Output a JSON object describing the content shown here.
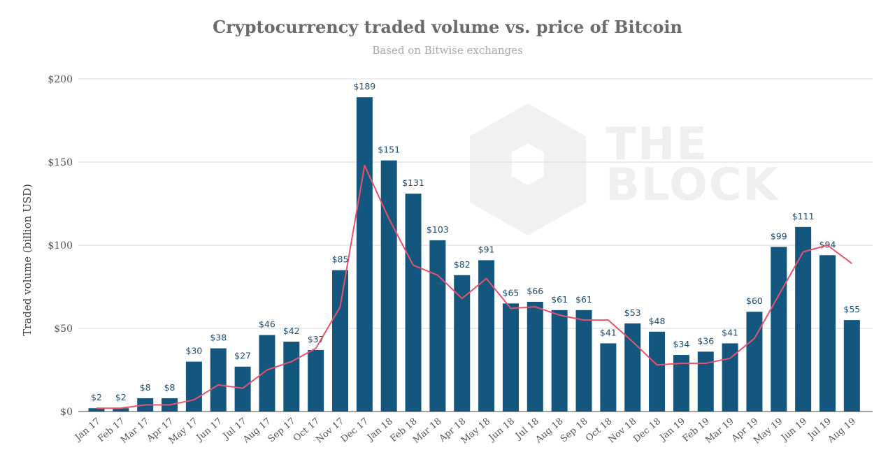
{
  "chart_data": {
    "type": "bar",
    "title": "Cryptocurrency traded volume vs. price of Bitcoin",
    "subtitle": "Based on Bitwise exchanges",
    "xlabel": "",
    "ylabel": "Traded volume (billion USD)",
    "ylim": [
      0,
      200
    ],
    "yticks": [
      "$0",
      "$50",
      "$100",
      "$150",
      "$200"
    ],
    "grid": true,
    "categories": [
      "Jan 17",
      "Feb 17",
      "Mar 17",
      "Apr 17",
      "May 17",
      "Jun 17",
      "Jul 17",
      "Aug 17",
      "Sep 17",
      "Oct 17",
      "Nov 17",
      "Dec 17",
      "Jan 18",
      "Feb 18",
      "Mar 18",
      "Apr 18",
      "May 18",
      "Jun 18",
      "Jul 18",
      "Aug 18",
      "Sep 18",
      "Oct 18",
      "Nov 18",
      "Dec 18",
      "Jan 19",
      "Feb 19",
      "Mar 19",
      "Apr 19",
      "May 19",
      "Jun 19",
      "Jul 19",
      "Aug 19"
    ],
    "series": [
      {
        "type": "bar",
        "color": "#13577f",
        "values": [
          2,
          2,
          8,
          8,
          30,
          38,
          27,
          46,
          42,
          37,
          85,
          189,
          151,
          131,
          103,
          82,
          91,
          65,
          66,
          61,
          61,
          41,
          53,
          48,
          34,
          36,
          41,
          60,
          99,
          111,
          94,
          55
        ],
        "labels": [
          "$2",
          "$2",
          "$8",
          "$8",
          "$30",
          "$38",
          "$27",
          "$46",
          "$42",
          "$37",
          "$85",
          "$189",
          "$151",
          "$131",
          "$103",
          "$82",
          "$91",
          "$65",
          "$66",
          "$61",
          "$61",
          "$41",
          "$53",
          "$48",
          "$34",
          "$36",
          "$41",
          "$60",
          "$99",
          "$111",
          "$94",
          "$55"
        ]
      },
      {
        "type": "line",
        "color": "#e8536b",
        "values": [
          {
            "x": "Jan 17",
            "y": 2
          },
          {
            "x": "Feb 17",
            "y": 2
          },
          {
            "x": "Mar 17",
            "y": 4
          },
          {
            "x": "Apr 17",
            "y": 4
          },
          {
            "x": "May 17",
            "y": 7
          },
          {
            "x": "Jun 17",
            "y": 16
          },
          {
            "x": "Jul 17",
            "y": 14
          },
          {
            "x": "Aug 17",
            "y": 25
          },
          {
            "x": "Sep 17",
            "y": 30
          },
          {
            "x": "Oct 17",
            "y": 38
          },
          {
            "x": "Nov 17",
            "y": 63
          },
          {
            "x": "Dec 17",
            "y": 148
          },
          {
            "x": "Jan 18",
            "y": 116
          },
          {
            "x": "Feb 18",
            "y": 88
          },
          {
            "x": "Mar 18",
            "y": 82
          },
          {
            "x": "Apr 18",
            "y": 68
          },
          {
            "x": "May 18",
            "y": 80
          },
          {
            "x": "Jun 18",
            "y": 62
          },
          {
            "x": "Jul 18",
            "y": 63
          },
          {
            "x": "Aug 18",
            "y": 58
          },
          {
            "x": "Sep 18",
            "y": 55
          },
          {
            "x": "Oct 18",
            "y": 55
          },
          {
            "x": "Nov 18",
            "y": 42
          },
          {
            "x": "Dec 18",
            "y": 28
          },
          {
            "x": "Jan 19",
            "y": 29
          },
          {
            "x": "Feb 19",
            "y": 29
          },
          {
            "x": "Mar 19",
            "y": 32
          },
          {
            "x": "Apr 19",
            "y": 44
          },
          {
            "x": "May 19",
            "y": 70
          },
          {
            "x": "Jun 19",
            "y": 96
          },
          {
            "x": "Jul 19",
            "y": 100
          },
          {
            "x": "Aug 19",
            "y": 89
          }
        ]
      }
    ],
    "watermark": [
      "THE",
      "BLOCK"
    ]
  }
}
